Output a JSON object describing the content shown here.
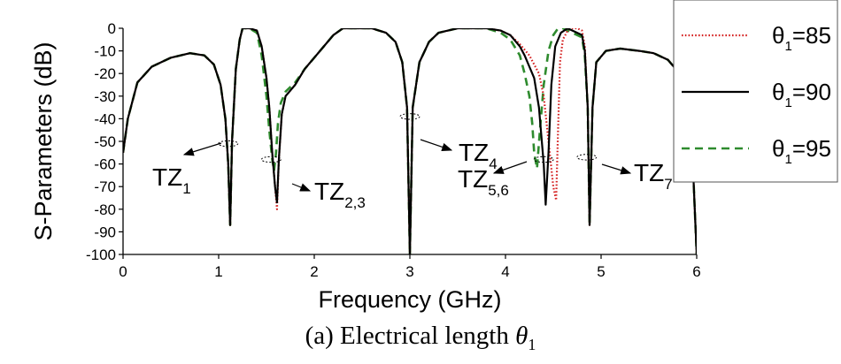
{
  "chart_data": {
    "type": "line",
    "xlabel": "Frequency (GHz)",
    "ylabel": "S-Parameters (dB)",
    "xlim": [
      0,
      6
    ],
    "ylim": [
      -100,
      0
    ],
    "xticks": [
      "0",
      "1",
      "2",
      "3",
      "4",
      "5",
      "6"
    ],
    "yticks": [
      "0",
      "-10",
      "-20",
      "-30",
      "-40",
      "-50",
      "-60",
      "-70",
      "-80",
      "-90",
      "-100"
    ],
    "legend_position": "top-right",
    "series": [
      {
        "name": "θ1=85",
        "legend_base": "θ",
        "legend_sub": "1",
        "legend_val": "=85",
        "color": "#d42020",
        "style": "dotted",
        "x": [
          0,
          0.05,
          0.15,
          0.3,
          0.5,
          0.7,
          0.85,
          0.95,
          1.02,
          1.07,
          1.1,
          1.12,
          1.14,
          1.18,
          1.22,
          1.25,
          1.28,
          1.32,
          1.4,
          1.45,
          1.5,
          1.53,
          1.56,
          1.59,
          1.61,
          1.63,
          1.66,
          1.7,
          1.8,
          1.9,
          2.0,
          2.1,
          2.2,
          2.3,
          2.6,
          2.75,
          2.85,
          2.92,
          2.97,
          3.0,
          3.03,
          3.1,
          3.2,
          3.3,
          3.5,
          3.8,
          3.95,
          4.05,
          4.15,
          4.25,
          4.3,
          4.35,
          4.4,
          4.45,
          4.5,
          4.53,
          4.55,
          4.57,
          4.6,
          4.65,
          4.7,
          4.75,
          4.8,
          4.83,
          4.86,
          4.88,
          4.91,
          4.95,
          5.05,
          5.2,
          5.4,
          5.55,
          5.7,
          5.8,
          5.9,
          5.95,
          5.98,
          6.0
        ],
        "values": [
          -55,
          -40,
          -24,
          -17,
          -13,
          -11,
          -12,
          -16,
          -25,
          -40,
          -60,
          -87,
          -50,
          -18,
          -5,
          0,
          0,
          0,
          -1,
          -8,
          -22,
          -35,
          -55,
          -70,
          -80,
          -58,
          -38,
          -30,
          -25,
          -18,
          -13,
          -8,
          -3,
          0,
          0,
          -2,
          -6,
          -15,
          -35,
          -100,
          -35,
          -15,
          -6,
          -2,
          0,
          0,
          -1,
          -3,
          -7,
          -12,
          -16,
          -20,
          -30,
          -50,
          -70,
          -76,
          -45,
          -15,
          -5,
          -1,
          0,
          0,
          -1,
          -8,
          -35,
          -87,
          -35,
          -15,
          -10,
          -9,
          -10,
          -11,
          -14,
          -19,
          -30,
          -50,
          -80,
          -100
        ]
      },
      {
        "name": "θ1=90",
        "legend_base": "θ",
        "legend_sub": "1",
        "legend_val": "=90",
        "color": "#000000",
        "style": "solid",
        "x": [
          0,
          0.05,
          0.15,
          0.3,
          0.5,
          0.7,
          0.85,
          0.95,
          1.02,
          1.07,
          1.1,
          1.12,
          1.14,
          1.18,
          1.22,
          1.25,
          1.28,
          1.32,
          1.4,
          1.45,
          1.5,
          1.53,
          1.56,
          1.59,
          1.61,
          1.63,
          1.66,
          1.7,
          1.8,
          1.9,
          2.0,
          2.1,
          2.2,
          2.3,
          2.6,
          2.75,
          2.85,
          2.92,
          2.97,
          3.0,
          3.03,
          3.1,
          3.2,
          3.3,
          3.5,
          3.8,
          3.95,
          4.05,
          4.15,
          4.2,
          4.25,
          4.3,
          4.35,
          4.4,
          4.42,
          4.45,
          4.48,
          4.52,
          4.58,
          4.65,
          4.7,
          4.75,
          4.8,
          4.83,
          4.86,
          4.88,
          4.91,
          4.95,
          5.05,
          5.2,
          5.4,
          5.55,
          5.7,
          5.8,
          5.9,
          5.95,
          5.98,
          6.0
        ],
        "values": [
          -55,
          -40,
          -24,
          -17,
          -13,
          -11,
          -12,
          -16,
          -25,
          -40,
          -60,
          -87,
          -50,
          -18,
          -5,
          0,
          0,
          0,
          -1,
          -8,
          -22,
          -35,
          -55,
          -70,
          -77,
          -58,
          -38,
          -30,
          -25,
          -18,
          -13,
          -8,
          -3,
          0,
          0,
          -2,
          -6,
          -15,
          -35,
          -100,
          -35,
          -15,
          -6,
          -2,
          0,
          0,
          -1,
          -3,
          -8,
          -12,
          -17,
          -22,
          -35,
          -60,
          -78,
          -55,
          -25,
          -8,
          -2,
          0,
          -1,
          -2,
          -3,
          -10,
          -35,
          -87,
          -35,
          -15,
          -10,
          -9,
          -10,
          -11,
          -14,
          -19,
          -30,
          -50,
          -80,
          -100
        ]
      },
      {
        "name": "θ1=95",
        "legend_base": "θ",
        "legend_sub": "1",
        "legend_val": "=95",
        "color": "#2e8b2e",
        "style": "dashed",
        "x": [
          0,
          0.05,
          0.15,
          0.3,
          0.5,
          0.7,
          0.85,
          0.95,
          1.02,
          1.07,
          1.1,
          1.12,
          1.14,
          1.18,
          1.22,
          1.25,
          1.28,
          1.32,
          1.4,
          1.45,
          1.5,
          1.53,
          1.56,
          1.58,
          1.6,
          1.62,
          1.65,
          1.7,
          1.8,
          1.9,
          2.0,
          2.1,
          2.2,
          2.3,
          2.6,
          2.75,
          2.85,
          2.92,
          2.97,
          3.0,
          3.03,
          3.1,
          3.2,
          3.3,
          3.5,
          3.8,
          3.95,
          4.05,
          4.15,
          4.2,
          4.25,
          4.28,
          4.3,
          4.33,
          4.36,
          4.4,
          4.45,
          4.5,
          4.55,
          4.6,
          4.65,
          4.7,
          4.75,
          4.8,
          4.83,
          4.86,
          4.88,
          4.91,
          4.95,
          5.05,
          5.2,
          5.4,
          5.55,
          5.7,
          5.8,
          5.9,
          5.95,
          5.98,
          6.0
        ],
        "values": [
          -55,
          -40,
          -24,
          -17,
          -13,
          -11,
          -12,
          -16,
          -25,
          -40,
          -60,
          -87,
          -50,
          -18,
          -5,
          0,
          0,
          0,
          -2,
          -12,
          -30,
          -45,
          -58,
          -63,
          -55,
          -42,
          -33,
          -28,
          -24,
          -18,
          -13,
          -8,
          -3,
          0,
          0,
          -2,
          -6,
          -15,
          -35,
          -100,
          -35,
          -15,
          -6,
          -2,
          0,
          0,
          -2,
          -5,
          -12,
          -20,
          -30,
          -42,
          -55,
          -62,
          -45,
          -25,
          -10,
          -3,
          0,
          0,
          -1,
          -2,
          -3,
          -4,
          -12,
          -35,
          -87,
          -35,
          -15,
          -10,
          -9,
          -10,
          -11,
          -14,
          -19,
          -30,
          -50,
          -80,
          -100
        ]
      }
    ],
    "annotations": [
      {
        "base": "TZ",
        "sub": "1",
        "x": 1.1,
        "y": -51
      },
      {
        "base": "TZ",
        "sub": "2,3",
        "x": 1.55,
        "y": -58
      },
      {
        "base": "TZ",
        "sub": "4",
        "x": 3.0,
        "y": -39
      },
      {
        "base": "TZ",
        "sub": "5,6",
        "x": 4.4,
        "y": -58
      },
      {
        "base": "TZ",
        "sub": "7",
        "x": 4.85,
        "y": -57
      }
    ]
  },
  "caption": {
    "text": "(a) Electrical length ",
    "symbol": "θ",
    "sub": "1"
  }
}
